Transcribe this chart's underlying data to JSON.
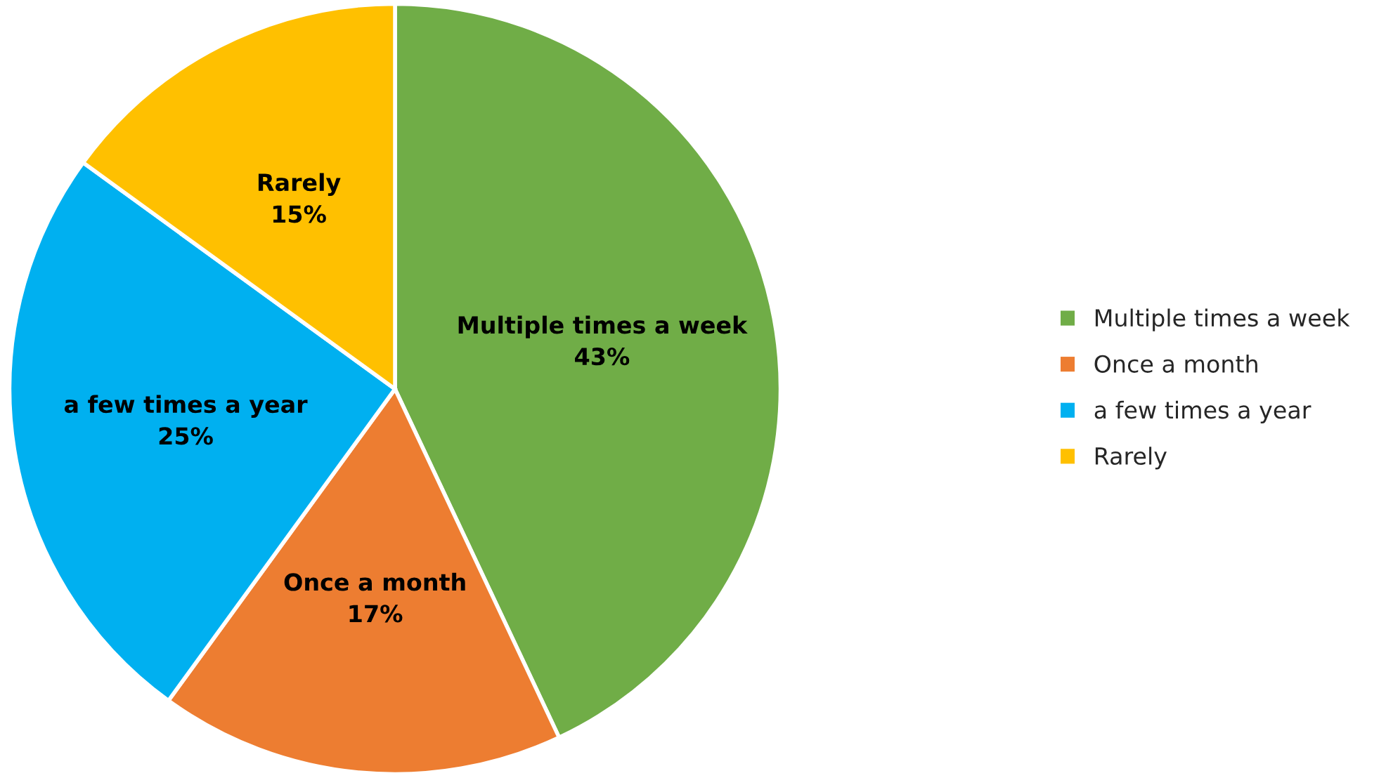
{
  "chart_data": {
    "type": "pie",
    "categories": [
      "Multiple times a week",
      "Once a month",
      "a few times a year",
      "Rarely"
    ],
    "values": [
      43,
      17,
      25,
      15
    ],
    "value_labels": [
      "43%",
      "17%",
      "25%",
      "15%"
    ],
    "colors": [
      "#70ad47",
      "#ed7d31",
      "#00b0f0",
      "#ffc000"
    ],
    "legend": "right"
  }
}
